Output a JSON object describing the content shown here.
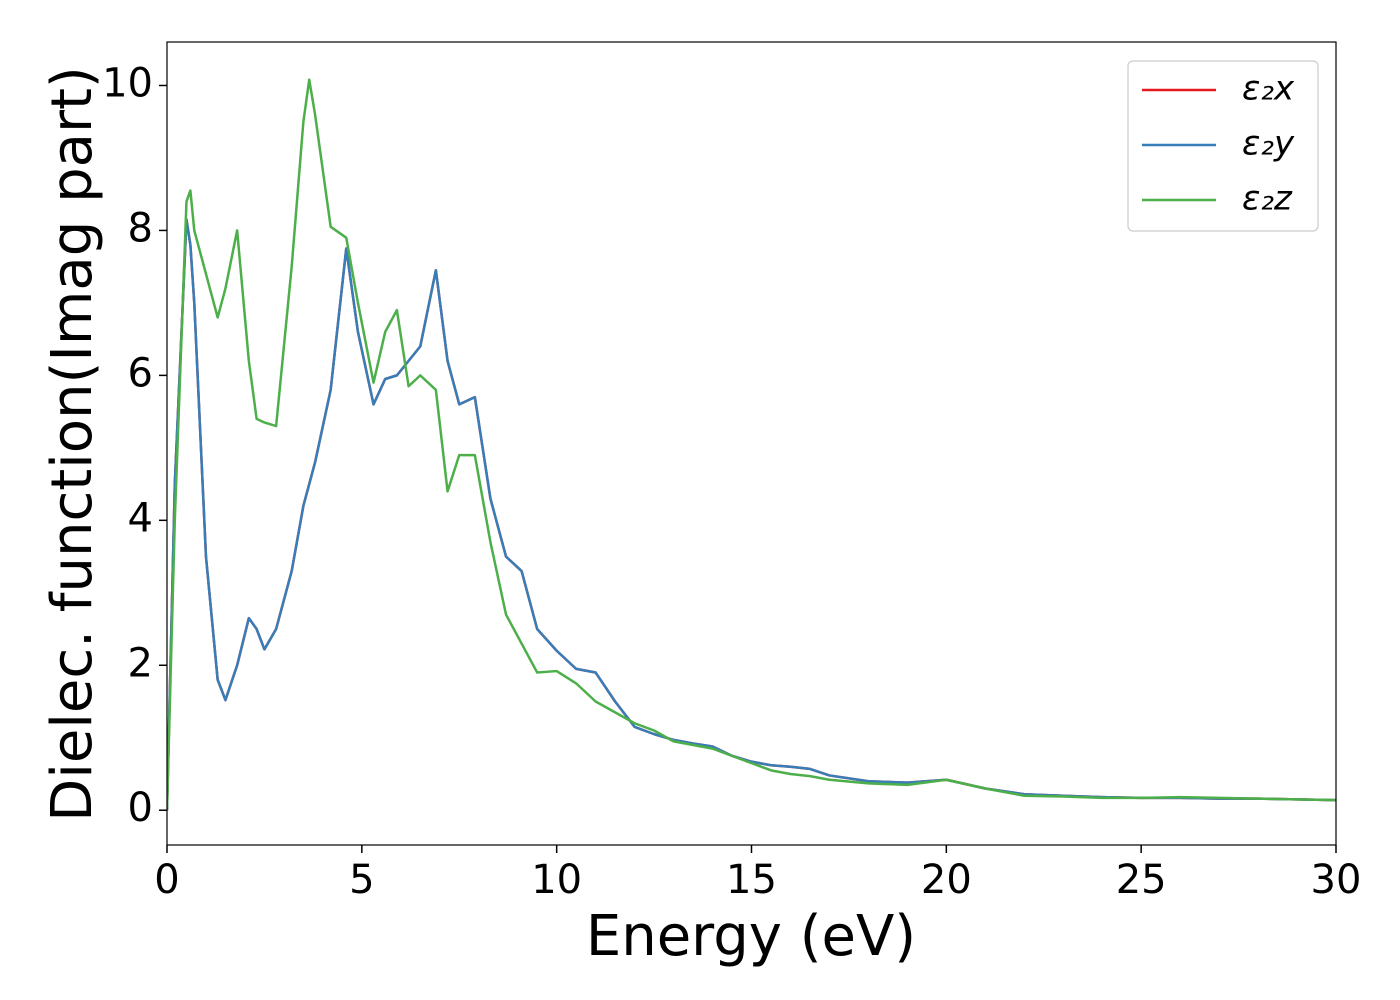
{
  "chart_data": {
    "type": "line",
    "xlabel": "Energy (eV)",
    "ylabel": "Dielec. function(Imag part)",
    "x": [
      0,
      0.2,
      0.5,
      0.6,
      0.7,
      1.0,
      1.3,
      1.5,
      1.8,
      2.1,
      2.3,
      2.5,
      2.8,
      3.2,
      3.5,
      3.65,
      3.8,
      4.2,
      4.6,
      4.9,
      5.3,
      5.6,
      5.9,
      6.2,
      6.5,
      6.9,
      7.2,
      7.5,
      7.9,
      8.3,
      8.7,
      9.1,
      9.5,
      10.0,
      10.5,
      11.0,
      11.5,
      12.0,
      12.5,
      13,
      13.5,
      14,
      14.5,
      15,
      15.5,
      16,
      16.5,
      17,
      18,
      19,
      20,
      21,
      22,
      23,
      24,
      25,
      26,
      27,
      28,
      29,
      30
    ],
    "series": [
      {
        "name": "ε₂x",
        "color": "#e41a1c",
        "values": [
          0,
          4.5,
          8.15,
          7.8,
          7.0,
          3.5,
          1.8,
          1.52,
          2.0,
          2.65,
          2.5,
          2.22,
          2.5,
          3.3,
          4.2,
          4.5,
          4.8,
          5.8,
          7.75,
          6.6,
          5.6,
          5.95,
          6.0,
          6.2,
          6.4,
          7.45,
          6.2,
          5.6,
          5.7,
          4.3,
          3.5,
          3.3,
          2.5,
          2.2,
          1.95,
          1.9,
          1.5,
          1.15,
          1.05,
          0.97,
          0.92,
          0.88,
          0.75,
          0.67,
          0.62,
          0.6,
          0.57,
          0.48,
          0.4,
          0.38,
          0.42,
          0.3,
          0.22,
          0.2,
          0.18,
          0.17,
          0.17,
          0.16,
          0.16,
          0.15,
          0.14
        ]
      },
      {
        "name": "ε₂y",
        "color": "#377eb8",
        "values": [
          0,
          4.5,
          8.15,
          7.8,
          7.0,
          3.5,
          1.8,
          1.52,
          2.0,
          2.65,
          2.5,
          2.22,
          2.5,
          3.3,
          4.2,
          4.5,
          4.8,
          5.8,
          7.75,
          6.6,
          5.6,
          5.95,
          6.0,
          6.2,
          6.4,
          7.45,
          6.2,
          5.6,
          5.7,
          4.3,
          3.5,
          3.3,
          2.5,
          2.2,
          1.95,
          1.9,
          1.5,
          1.15,
          1.05,
          0.97,
          0.92,
          0.88,
          0.75,
          0.67,
          0.62,
          0.6,
          0.57,
          0.48,
          0.4,
          0.38,
          0.42,
          0.3,
          0.22,
          0.2,
          0.18,
          0.17,
          0.17,
          0.16,
          0.16,
          0.15,
          0.14
        ]
      },
      {
        "name": "ε₂z",
        "color": "#4daf4a",
        "values": [
          0,
          4.0,
          8.4,
          8.55,
          8.0,
          7.4,
          6.8,
          7.2,
          8.0,
          6.2,
          5.4,
          5.35,
          5.3,
          7.5,
          9.5,
          10.08,
          9.6,
          8.05,
          7.9,
          7.0,
          5.9,
          6.6,
          6.9,
          5.85,
          6.0,
          5.8,
          4.4,
          4.9,
          4.9,
          3.7,
          2.7,
          2.3,
          1.9,
          1.92,
          1.75,
          1.5,
          1.35,
          1.2,
          1.1,
          0.95,
          0.9,
          0.85,
          0.75,
          0.65,
          0.55,
          0.5,
          0.47,
          0.42,
          0.37,
          0.35,
          0.42,
          0.3,
          0.2,
          0.19,
          0.17,
          0.17,
          0.18,
          0.17,
          0.16,
          0.15,
          0.14
        ]
      }
    ],
    "xlim": [
      0,
      30
    ],
    "xticks": [
      0,
      5,
      10,
      15,
      20,
      25,
      30
    ],
    "ylim": [
      -0.48,
      10.6
    ],
    "yticks": [
      0,
      2,
      4,
      6,
      8,
      10
    ],
    "grid": false,
    "legend": "upper right"
  }
}
